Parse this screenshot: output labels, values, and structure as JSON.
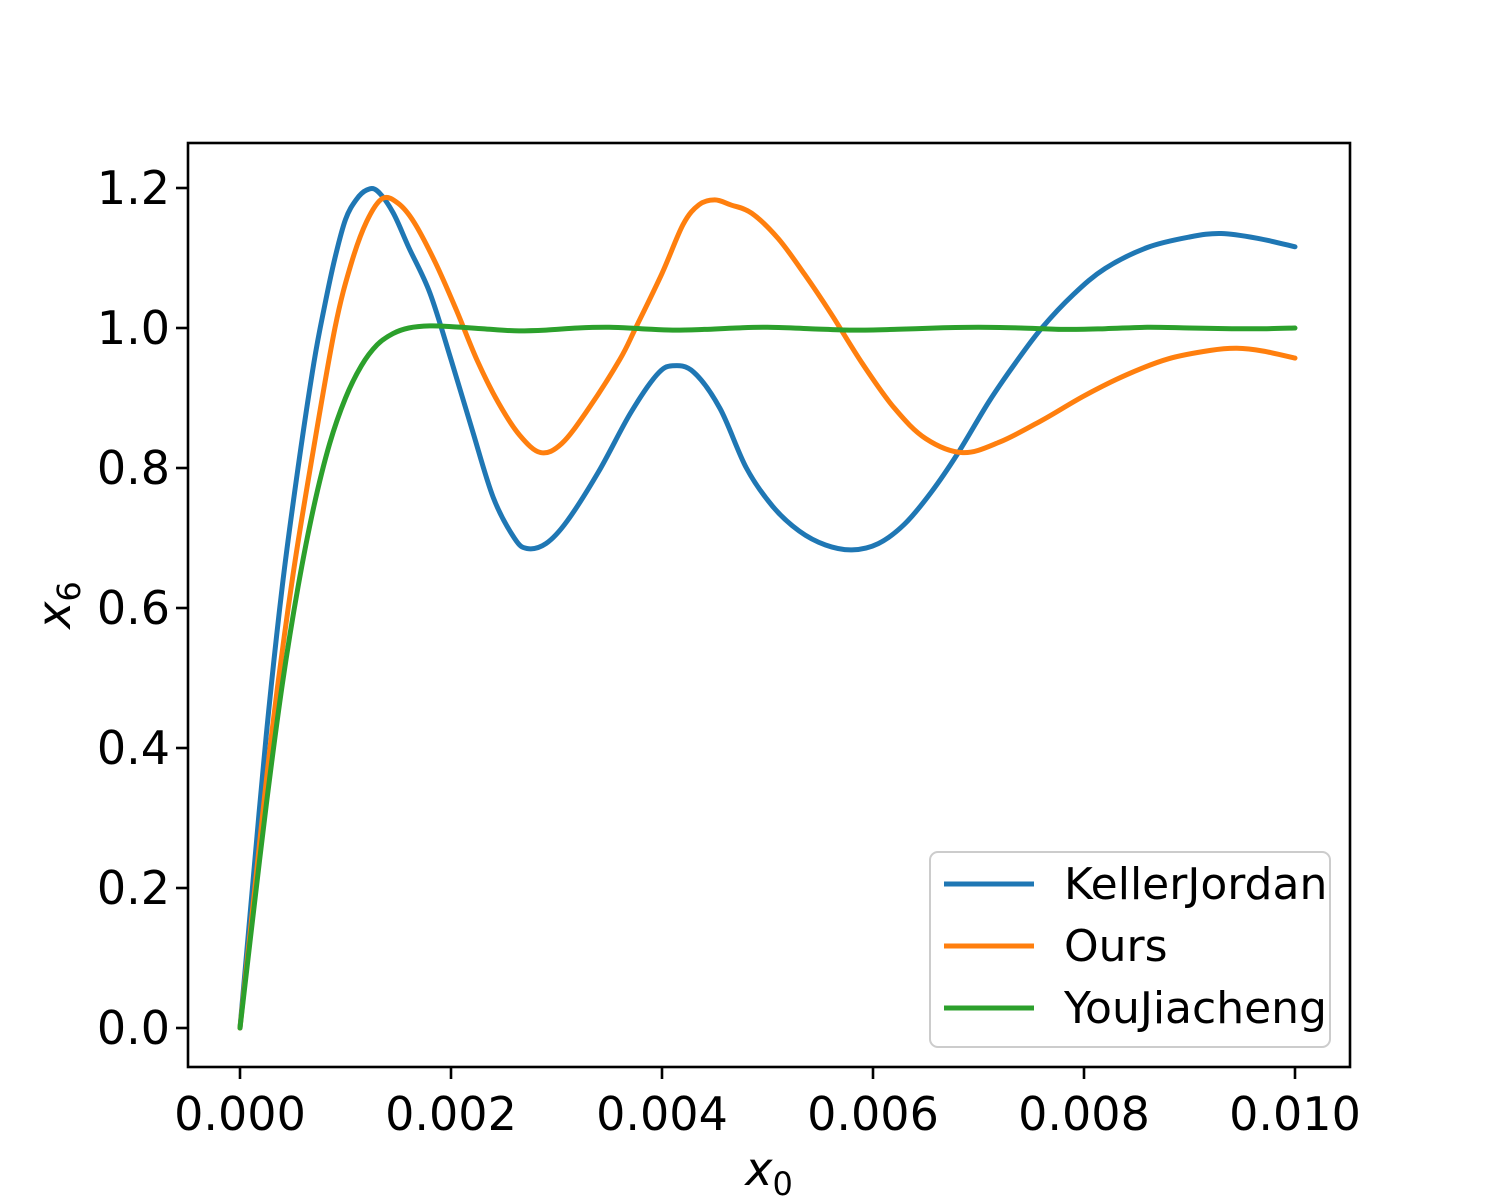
{
  "figure": {
    "background": "#ffffff"
  },
  "chart_data": {
    "type": "line",
    "title": "",
    "xlabel": "x₀",
    "ylabel": "x₆",
    "xlim": [
      -0.00049,
      0.01052
    ],
    "ylim": [
      -0.056,
      1.264
    ],
    "grid": false,
    "colors": {
      "axes": "#000000",
      "text": "#000000",
      "legend_frame": "#cccccc",
      "background": "#ffffff"
    },
    "xticks": {
      "values": [
        0.0,
        0.002,
        0.004,
        0.006,
        0.008,
        0.01
      ],
      "labels": [
        "0.000",
        "0.002",
        "0.004",
        "0.006",
        "0.008",
        "0.010"
      ]
    },
    "yticks": {
      "values": [
        0.0,
        0.2,
        0.4,
        0.6,
        0.8,
        1.0,
        1.2
      ],
      "labels": [
        "0.0",
        "0.2",
        "0.4",
        "0.6",
        "0.8",
        "1.0",
        "1.2"
      ]
    },
    "legend": {
      "location": "lower right",
      "entries": [
        "KellerJordan",
        "Ours",
        "YouJiacheng"
      ]
    },
    "series": [
      {
        "name": "KellerJordan",
        "color": "#1f77b4",
        "x": [
          0,
          0.0001,
          0.00025,
          0.0004,
          0.00055,
          0.0007,
          0.0008,
          0.0009,
          0.001,
          0.0011,
          0.0012,
          0.0013,
          0.00145,
          0.0016,
          0.0018,
          0.002,
          0.0022,
          0.0024,
          0.0026,
          0.00272,
          0.0029,
          0.0031,
          0.0034,
          0.0037,
          0.00395,
          0.0041,
          0.0043,
          0.00455,
          0.0048,
          0.00505,
          0.0053,
          0.00555,
          0.0058,
          0.00605,
          0.0063,
          0.00655,
          0.0068,
          0.0071,
          0.00735,
          0.0076,
          0.0079,
          0.0082,
          0.0086,
          0.009,
          0.0093,
          0.00965,
          0.01
        ],
        "y": [
          0,
          0.17,
          0.42,
          0.63,
          0.8,
          0.95,
          1.03,
          1.1,
          1.155,
          1.183,
          1.197,
          1.196,
          1.165,
          1.115,
          1.05,
          0.955,
          0.855,
          0.758,
          0.7,
          0.685,
          0.692,
          0.724,
          0.795,
          0.878,
          0.933,
          0.946,
          0.937,
          0.885,
          0.8,
          0.745,
          0.71,
          0.69,
          0.683,
          0.692,
          0.72,
          0.765,
          0.82,
          0.895,
          0.95,
          1.0,
          1.048,
          1.085,
          1.115,
          1.13,
          1.135,
          1.128,
          1.116
        ]
      },
      {
        "name": "Ours",
        "color": "#ff7f0e",
        "x": [
          0,
          0.00012,
          0.0003,
          0.0005,
          0.0007,
          0.0009,
          0.00105,
          0.0012,
          0.00135,
          0.0015,
          0.00165,
          0.00185,
          0.00205,
          0.00225,
          0.00245,
          0.00265,
          0.00285,
          0.00305,
          0.0033,
          0.0036,
          0.00375,
          0.004,
          0.0042,
          0.00435,
          0.0045,
          0.00465,
          0.00485,
          0.0051,
          0.00535,
          0.0056,
          0.0059,
          0.0062,
          0.0065,
          0.00685,
          0.0072,
          0.0076,
          0.008,
          0.0084,
          0.0088,
          0.0092,
          0.00945,
          0.0097,
          0.01
        ],
        "y": [
          0,
          0.17,
          0.42,
          0.645,
          0.83,
          1.0,
          1.09,
          1.152,
          1.185,
          1.178,
          1.151,
          1.094,
          1.026,
          0.953,
          0.893,
          0.847,
          0.822,
          0.835,
          0.884,
          0.955,
          1.0,
          1.078,
          1.148,
          1.176,
          1.183,
          1.176,
          1.164,
          1.128,
          1.077,
          1.021,
          0.949,
          0.886,
          0.842,
          0.822,
          0.837,
          0.868,
          0.903,
          0.933,
          0.956,
          0.968,
          0.971,
          0.967,
          0.957
        ]
      },
      {
        "name": "YouJiacheng",
        "color": "#2ca02c",
        "x": [
          0,
          0.0001,
          0.00025,
          0.0004,
          0.00055,
          0.0007,
          0.00085,
          0.001,
          0.00115,
          0.0013,
          0.00145,
          0.0016,
          0.0018,
          0.002,
          0.0023,
          0.0026,
          0.0029,
          0.0032,
          0.0035,
          0.0038,
          0.0041,
          0.0044,
          0.0047,
          0.005,
          0.0054,
          0.0058,
          0.0062,
          0.0066,
          0.007,
          0.0074,
          0.0078,
          0.0082,
          0.0086,
          0.009,
          0.0094,
          0.0097,
          0.01
        ],
        "y": [
          0,
          0.13,
          0.32,
          0.49,
          0.63,
          0.745,
          0.835,
          0.9,
          0.946,
          0.976,
          0.992,
          1.0,
          1.003,
          1.002,
          0.999,
          0.996,
          0.997,
          1.0,
          1.001,
          0.999,
          0.997,
          0.998,
          1.0,
          1.001,
          0.999,
          0.997,
          0.998,
          1.0,
          1.001,
          1.0,
          0.998,
          0.999,
          1.001,
          1.0,
          0.999,
          0.999,
          1.0
        ]
      }
    ]
  }
}
